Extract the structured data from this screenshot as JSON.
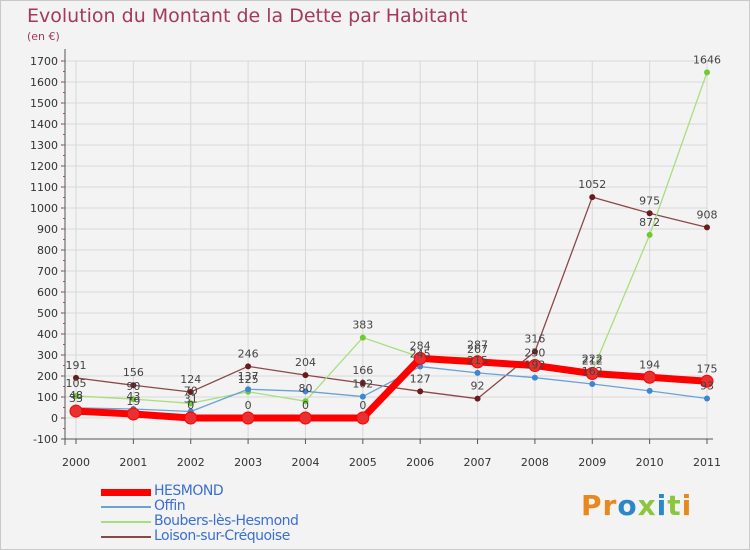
{
  "header": {
    "title": "Evolution du Montant de la Dette par Habitant",
    "subtitle": "(en €)"
  },
  "chart_data": {
    "type": "line",
    "title": "Evolution du Montant de la Dette par Habitant",
    "subtitle": "(en €)",
    "xlabel": "",
    "ylabel": "",
    "categories": [
      "2000",
      "2001",
      "2002",
      "2003",
      "2004",
      "2005",
      "2006",
      "2007",
      "2008",
      "2009",
      "2010",
      "2011"
    ],
    "ylim": [
      -100,
      1700
    ],
    "yticks": [
      "-100",
      "0",
      "100",
      "200",
      "300",
      "400",
      "500",
      "600",
      "700",
      "800",
      "900",
      "1000",
      "1100",
      "1200",
      "1300",
      "1400",
      "1500",
      "1600",
      "1700"
    ],
    "grid": true,
    "legend": "bottom-left",
    "series": [
      {
        "name": "HESMOND",
        "color": "#ff0000",
        "width": 7,
        "marker": "#e83030",
        "values": [
          33,
          19,
          0,
          0,
          0,
          0,
          284,
          267,
          250,
          212,
          194,
          175
        ],
        "labels": [
          "33",
          "19",
          "0",
          "0",
          "0",
          "0",
          "284",
          "267",
          "250",
          "212",
          "194",
          "175"
        ]
      },
      {
        "name": "Offin",
        "color": "#6aa2d8",
        "width": 1.3,
        "marker": "#3f86d0",
        "values": [
          48,
          43,
          31,
          137,
          127,
          102,
          245,
          215,
          192,
          162,
          129,
          93
        ],
        "labels": [
          "48",
          "43",
          "31",
          "137",
          "",
          "102",
          "245",
          "215",
          "192",
          "162",
          "",
          "93"
        ]
      },
      {
        "name": "Boubers-lès-Hesmond",
        "color": "#a9de7e",
        "width": 1.3,
        "marker": "#6fcc2f",
        "values": [
          105,
          90,
          70,
          125,
          80,
          383,
          290,
          287,
          240,
          222,
          872,
          1646
        ],
        "labels": [
          "105",
          "90",
          "70",
          "125",
          "80",
          "383",
          "",
          "287",
          "",
          "222",
          "872",
          "1646"
        ]
      },
      {
        "name": "Loison-sur-Créquoise",
        "color": "#8b4848",
        "width": 1.3,
        "marker": "#6a1b1b",
        "values": [
          191,
          156,
          124,
          246,
          204,
          166,
          127,
          92,
          316,
          1052,
          975,
          908
        ],
        "labels": [
          "191",
          "156",
          "124",
          "246",
          "204",
          "166",
          "127",
          "92",
          "316",
          "1052",
          "975",
          "908"
        ]
      }
    ]
  },
  "branding": {
    "logo_text": "Proxiti",
    "logo_colors": [
      "#e8891e",
      "#e8891e",
      "#2d86c6",
      "#8cc63f",
      "#2d86c6",
      "#8cc63f",
      "#e8891e"
    ]
  }
}
